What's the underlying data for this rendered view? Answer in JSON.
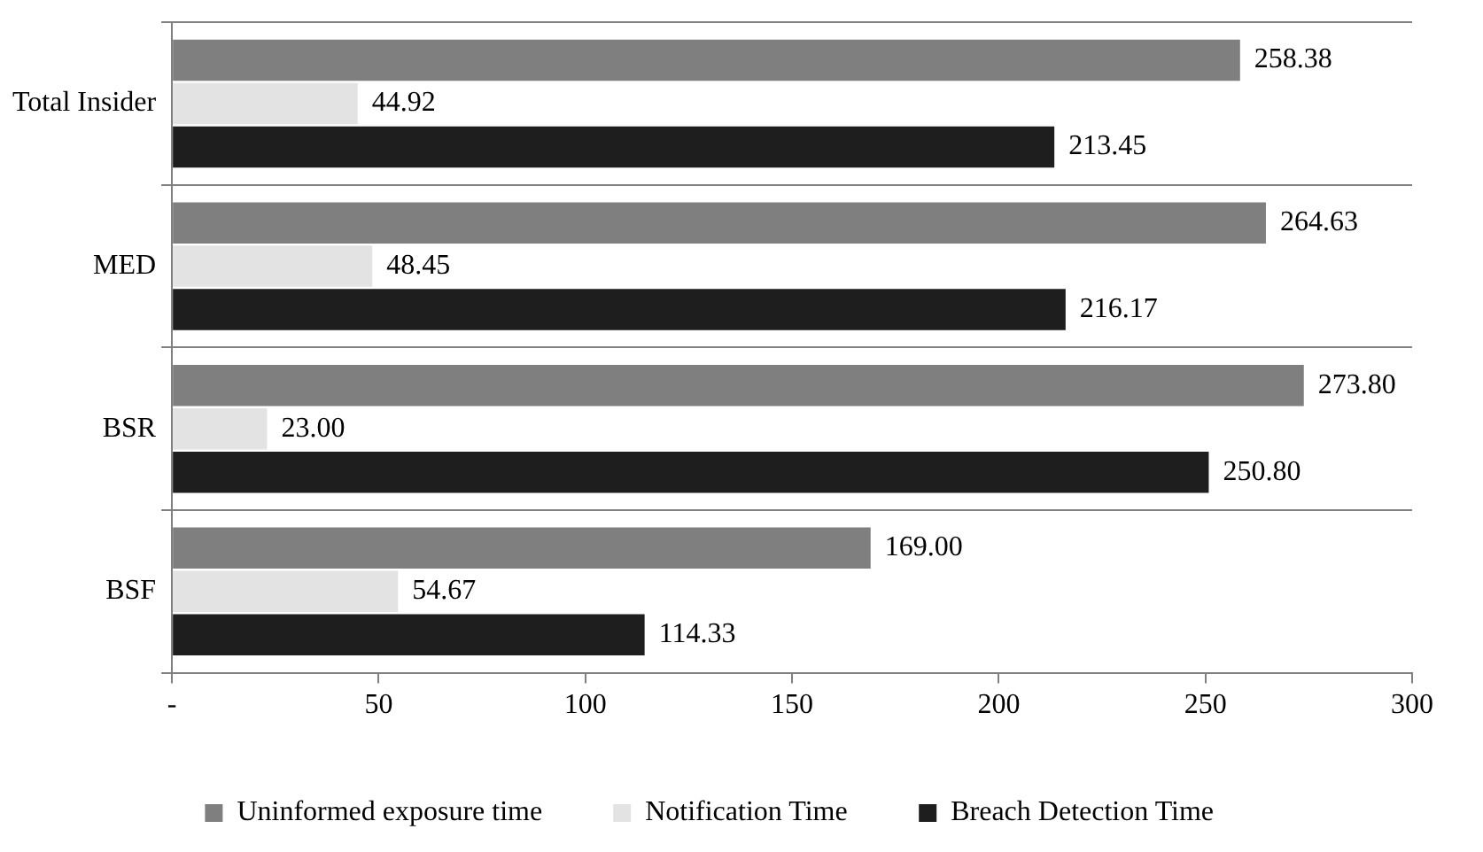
{
  "chart_data": {
    "type": "bar",
    "orientation": "horizontal",
    "categories": [
      "Total Insider",
      "MED",
      "BSR",
      "BSF"
    ],
    "series": [
      {
        "name": "Uninformed exposure time",
        "color": "#7f7f7f",
        "values": [
          258.38,
          264.63,
          273.8,
          169
        ],
        "value_labels": [
          "258.38",
          "264.63",
          "273.80",
          "169.00"
        ]
      },
      {
        "name": "Notification Time",
        "color": "#e3e3e3",
        "values": [
          44.92,
          48.45,
          23,
          54.67
        ],
        "value_labels": [
          "44.92",
          "48.45",
          "23.00",
          "54.67"
        ]
      },
      {
        "name": "Breach Detection Time",
        "color": "#1e1e1e",
        "values": [
          213.45,
          216.17,
          250.8,
          114.33
        ],
        "value_labels": [
          "213.45",
          "216.17",
          "250.80",
          "114.33"
        ]
      }
    ],
    "xlim": [
      0,
      300
    ],
    "xticks": [
      {
        "value": 0,
        "label": "-"
      },
      50,
      100,
      150,
      200,
      250,
      300
    ],
    "grid": "y",
    "legend": "bottom"
  }
}
